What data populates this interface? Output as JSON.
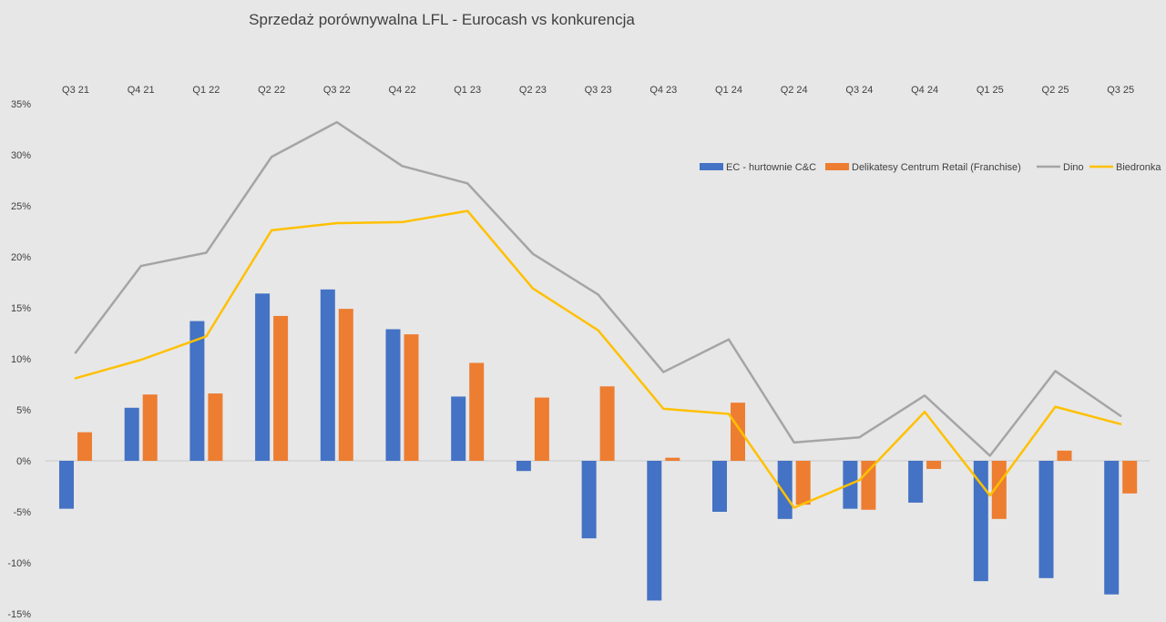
{
  "chart_data": {
    "type": "bar",
    "title": "Sprzedaż porównywalna LFL - Eurocash vs konkurencja",
    "categories": [
      "Q3 21",
      "Q4 21",
      "Q1 22",
      "Q2 22",
      "Q3 22",
      "Q4 22",
      "Q1 23",
      "Q2 23",
      "Q3 23",
      "Q4 23",
      "Q1 24",
      "Q2 24",
      "Q3 24",
      "Q4 24",
      "Q1 25",
      "Q2 25",
      "Q3 25"
    ],
    "y_ticks": [
      "35%",
      "30%",
      "25%",
      "20%",
      "15%",
      "10%",
      "5%",
      "0%",
      "-5%",
      "-10%",
      "-15%"
    ],
    "ylim": [
      -15,
      35
    ],
    "grid": false,
    "legend_position": "top-right",
    "series": [
      {
        "name": "EC - hurtownie C&C",
        "kind": "bar",
        "color": "#4472c4",
        "values": [
          -4.7,
          5.2,
          13.7,
          16.4,
          16.8,
          12.9,
          6.3,
          -1.0,
          -7.6,
          -13.7,
          -5.0,
          -5.7,
          -4.7,
          -4.1,
          -11.8,
          -11.5,
          -13.1
        ]
      },
      {
        "name": "Delikatesy Centrum Retail (Franchise)",
        "kind": "bar",
        "color": "#ed7d31",
        "values": [
          2.8,
          6.5,
          6.6,
          14.2,
          14.9,
          12.4,
          9.6,
          6.2,
          7.3,
          0.3,
          5.7,
          -4.3,
          -4.8,
          -0.8,
          -5.7,
          1.0,
          -3.2
        ]
      },
      {
        "name": "Dino",
        "kind": "line",
        "color": "#a5a5a5",
        "values": [
          10.6,
          19.1,
          20.4,
          29.8,
          33.2,
          28.9,
          27.2,
          20.3,
          16.3,
          8.7,
          11.9,
          1.8,
          2.3,
          6.4,
          0.5,
          8.8,
          4.4
        ]
      },
      {
        "name": "Biedronka",
        "kind": "line",
        "color": "#ffc000",
        "values": [
          8.1,
          9.9,
          12.2,
          22.6,
          23.3,
          23.4,
          24.5,
          16.9,
          12.8,
          5.1,
          4.6,
          -4.6,
          -1.9,
          4.8,
          -3.4,
          5.3,
          3.6
        ]
      }
    ]
  }
}
